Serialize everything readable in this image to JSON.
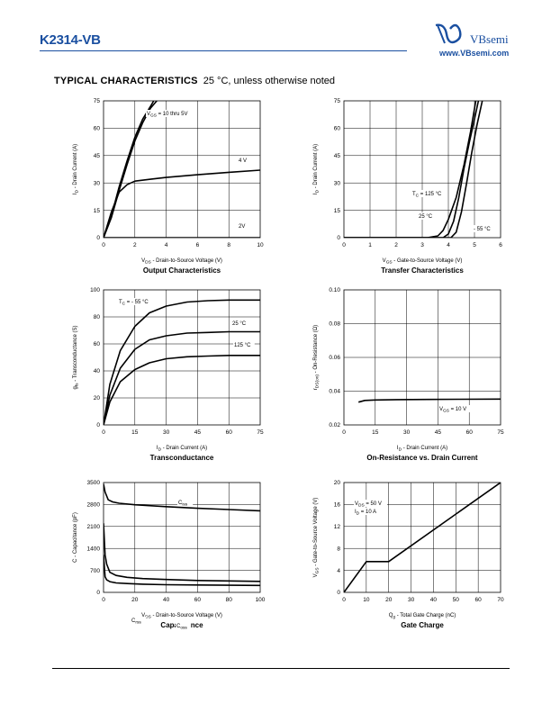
{
  "header": {
    "part_number": "K2314-VB",
    "brand": "VBsemi",
    "url": "www.VBsemi.com"
  },
  "section": {
    "title": "TYPICAL CHARACTERISTICS",
    "subtitle": "25 °C, unless otherwise noted"
  },
  "chart_data": [
    {
      "id": "output",
      "type": "line",
      "title": "Output Characteristics",
      "xlabel": "VDS - Drain-to-Source Voltage (V)",
      "ylabel": "ID - Drain Current (A)",
      "xlim": [
        0,
        10
      ],
      "ylim": [
        0,
        75
      ],
      "xticks": [
        0,
        2,
        4,
        6,
        8,
        10
      ],
      "yticks": [
        0,
        15,
        30,
        45,
        60,
        75
      ],
      "grid": true,
      "annotations": [
        "VGS = 10 thru 5V",
        "4 V",
        "2V"
      ],
      "series": [
        {
          "name": "VGS = 10 thru 5V",
          "x": [
            0,
            0.5,
            1,
            1.5,
            2,
            2.5,
            3,
            3.2
          ],
          "y": [
            0,
            12,
            28,
            42,
            55,
            65,
            72,
            75
          ]
        },
        {
          "name": "",
          "x": [
            0,
            0.5,
            1,
            1.5,
            2,
            2.5,
            3,
            3.4
          ],
          "y": [
            0,
            11,
            26,
            40,
            53,
            63,
            71,
            75
          ]
        },
        {
          "name": "4 V",
          "x": [
            0,
            0.5,
            1,
            1.5,
            2,
            3,
            4,
            6,
            8,
            10
          ],
          "y": [
            0,
            14,
            25,
            29,
            31,
            32,
            33,
            34.5,
            35.8,
            37
          ]
        },
        {
          "name": "2V",
          "x": [
            0,
            10
          ],
          "y": [
            0,
            0
          ]
        }
      ]
    },
    {
      "id": "transfer",
      "type": "line",
      "title": "Transfer Characteristics",
      "xlabel": "VGS - Gate-to-Source Voltage (V)",
      "ylabel": "ID - Drain Current (A)",
      "xlim": [
        0,
        6
      ],
      "ylim": [
        0,
        75
      ],
      "xticks": [
        0,
        1,
        2,
        3,
        4,
        5,
        6
      ],
      "yticks": [
        0,
        15,
        30,
        45,
        60,
        75
      ],
      "grid": true,
      "annotations": [
        "TC = 125 °C",
        "25 °C",
        "- 55 °C"
      ],
      "series": [
        {
          "name": "TC = 125 °C",
          "x": [
            0,
            3.2,
            3.6,
            3.8,
            4.0,
            4.3,
            4.6,
            4.85,
            5.05
          ],
          "y": [
            0,
            0,
            1,
            4,
            10,
            22,
            40,
            58,
            75
          ]
        },
        {
          "name": "25 °C",
          "x": [
            0,
            3.8,
            4.0,
            4.2,
            4.4,
            4.6,
            4.8,
            5.0,
            5.15
          ],
          "y": [
            0,
            0,
            2,
            9,
            22,
            38,
            52,
            65,
            75
          ]
        },
        {
          "name": "- 55 °C",
          "x": [
            0,
            4.1,
            4.3,
            4.5,
            4.7,
            4.9,
            5.1,
            5.3
          ],
          "y": [
            0,
            0,
            3,
            14,
            30,
            47,
            62,
            75
          ]
        }
      ]
    },
    {
      "id": "transconductance",
      "type": "line",
      "title": "Transconductance",
      "xlabel": "ID - Drain Current (A)",
      "ylabel": "gfs - Transconductance (S)",
      "xlim": [
        0,
        75
      ],
      "ylim": [
        0,
        100
      ],
      "xticks": [
        0,
        15,
        30,
        45,
        60,
        75
      ],
      "yticks": [
        0,
        20,
        40,
        60,
        80,
        100
      ],
      "grid": true,
      "annotations": [
        "TC = - 55 °C",
        "25 °C",
        "125 °C"
      ],
      "series": [
        {
          "name": "TC = - 55 °C",
          "x": [
            0,
            3,
            8,
            15,
            22,
            30,
            40,
            50,
            60,
            75
          ],
          "y": [
            0,
            30,
            55,
            73,
            83,
            88,
            91,
            92,
            92.5,
            92.5
          ]
        },
        {
          "name": "25 °C",
          "x": [
            0,
            3,
            8,
            15,
            22,
            30,
            40,
            50,
            60,
            75
          ],
          "y": [
            0,
            22,
            42,
            56,
            63,
            66,
            68,
            68.5,
            69,
            69
          ]
        },
        {
          "name": "125 °C",
          "x": [
            0,
            3,
            8,
            15,
            22,
            30,
            40,
            50,
            60,
            75
          ],
          "y": [
            0,
            17,
            32,
            41,
            46,
            49,
            50.5,
            51,
            51.5,
            51.5
          ]
        }
      ]
    },
    {
      "id": "rdson",
      "type": "line",
      "title": "On-Resistance vs. Drain Current",
      "xlabel": "ID - Drain Current (A)",
      "ylabel": "rDS(on) - On-Resistance (Ω)",
      "xlim": [
        0,
        75
      ],
      "ylim": [
        0.02,
        0.1
      ],
      "xticks": [
        0,
        15,
        30,
        45,
        60,
        75
      ],
      "yticks": [
        0.02,
        0.04,
        0.06,
        0.08,
        0.1
      ],
      "grid": true,
      "annotations": [
        "VGS = 10 V"
      ],
      "series": [
        {
          "name": "VGS = 10 V",
          "x": [
            7,
            10,
            15,
            25,
            40,
            55,
            75
          ],
          "y": [
            0.0335,
            0.0345,
            0.0348,
            0.035,
            0.0351,
            0.0352,
            0.0353
          ]
        }
      ]
    },
    {
      "id": "capacitance",
      "type": "line",
      "title": "Capacitance",
      "xlabel": "VDS - Drain-to-Source Voltage (V)",
      "ylabel": "C - Capacitance (pF)",
      "xlim": [
        0,
        100
      ],
      "ylim": [
        0,
        3500
      ],
      "xticks": [
        0,
        20,
        40,
        60,
        80,
        100
      ],
      "yticks": [
        0,
        700,
        1400,
        2100,
        2800,
        3500
      ],
      "grid": true,
      "annotations": [
        "Ciss",
        "Crss",
        "Coss"
      ],
      "series": [
        {
          "name": "Ciss",
          "x": [
            0,
            1,
            3,
            6,
            10,
            20,
            40,
            60,
            80,
            100
          ],
          "y": [
            3450,
            3200,
            2950,
            2880,
            2840,
            2790,
            2730,
            2680,
            2640,
            2600
          ]
        },
        {
          "name": "Coss",
          "x": [
            0,
            1,
            2,
            4,
            8,
            15,
            25,
            40,
            60,
            80,
            100
          ],
          "y": [
            2200,
            1200,
            900,
            640,
            540,
            480,
            440,
            410,
            380,
            365,
            350
          ]
        },
        {
          "name": "Crss",
          "x": [
            0,
            1,
            2,
            4,
            8,
            15,
            25,
            40,
            60,
            80,
            100
          ],
          "y": [
            1200,
            500,
            400,
            340,
            300,
            280,
            260,
            245,
            235,
            228,
            222
          ]
        }
      ]
    },
    {
      "id": "gatecharge",
      "type": "line",
      "title": "Gate Charge",
      "xlabel": "Qg - Total Gate Charge (nC)",
      "ylabel": "VGS - Gate-to-Source Voltage (V)",
      "xlim": [
        0,
        70
      ],
      "ylim": [
        0,
        20
      ],
      "xticks": [
        0,
        10,
        20,
        30,
        40,
        50,
        60,
        70
      ],
      "yticks": [
        0,
        4,
        8,
        12,
        16,
        20
      ],
      "grid": true,
      "annotations": [
        "VDS = 50 V",
        "ID = 10 A"
      ],
      "series": [
        {
          "name": "VDS = 50 V",
          "x": [
            0,
            10,
            20,
            70
          ],
          "y": [
            0,
            5.6,
            5.6,
            20
          ]
        }
      ]
    }
  ]
}
